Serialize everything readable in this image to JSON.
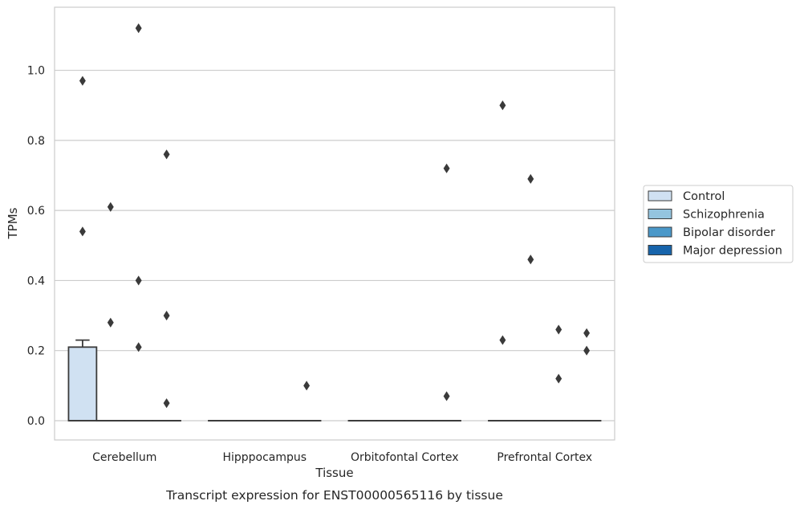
{
  "chart_data": {
    "type": "box",
    "caption": "Transcript expression for ENST00000565116 by tissue",
    "xlabel": "Tissue",
    "ylabel": "TPMs",
    "ylim": [
      -0.055,
      1.18
    ],
    "yticks": [
      0.0,
      0.2,
      0.4,
      0.6,
      0.8,
      1.0
    ],
    "ytick_labels": [
      "0.0",
      "0.2",
      "0.4",
      "0.6",
      "0.8",
      "1.0"
    ],
    "grid": true,
    "legend_position": "right",
    "categories": [
      "Cerebellum",
      "Hipppocampus",
      "Orbitofontal Cortex",
      "Prefrontal Cortex"
    ],
    "series": [
      {
        "name": "Control",
        "color": "#d0e1f2",
        "boxes": [
          {
            "q1": 0.0,
            "median": 0.0,
            "q3": 0.21,
            "whisker_low": 0.0,
            "whisker_high": 0.23,
            "outliers": [
              0.97,
              0.54
            ]
          },
          {
            "q1": 0.0,
            "median": 0.0,
            "q3": 0.0,
            "whisker_low": 0.0,
            "whisker_high": 0.0,
            "outliers": []
          },
          {
            "q1": 0.0,
            "median": 0.0,
            "q3": 0.0,
            "whisker_low": 0.0,
            "whisker_high": 0.0,
            "outliers": []
          },
          {
            "q1": 0.0,
            "median": 0.0,
            "q3": 0.0,
            "whisker_low": 0.0,
            "whisker_high": 0.0,
            "outliers": [
              0.9,
              0.23
            ]
          }
        ]
      },
      {
        "name": "Schizophrenia",
        "color": "#94c4df",
        "boxes": [
          {
            "q1": 0.0,
            "median": 0.0,
            "q3": 0.0,
            "whisker_low": 0.0,
            "whisker_high": 0.0,
            "outliers": [
              0.61,
              0.28
            ]
          },
          {
            "q1": 0.0,
            "median": 0.0,
            "q3": 0.0,
            "whisker_low": 0.0,
            "whisker_high": 0.0,
            "outliers": []
          },
          {
            "q1": 0.0,
            "median": 0.0,
            "q3": 0.0,
            "whisker_low": 0.0,
            "whisker_high": 0.0,
            "outliers": []
          },
          {
            "q1": 0.0,
            "median": 0.0,
            "q3": 0.0,
            "whisker_low": 0.0,
            "whisker_high": 0.0,
            "outliers": [
              0.69,
              0.46
            ]
          }
        ]
      },
      {
        "name": "Bipolar disorder",
        "color": "#4a98c9",
        "boxes": [
          {
            "q1": 0.0,
            "median": 0.0,
            "q3": 0.0,
            "whisker_low": 0.0,
            "whisker_high": 0.0,
            "outliers": [
              1.12,
              0.4,
              0.21
            ]
          },
          {
            "q1": 0.0,
            "median": 0.0,
            "q3": 0.0,
            "whisker_low": 0.0,
            "whisker_high": 0.0,
            "outliers": []
          },
          {
            "q1": 0.0,
            "median": 0.0,
            "q3": 0.0,
            "whisker_low": 0.0,
            "whisker_high": 0.0,
            "outliers": []
          },
          {
            "q1": 0.0,
            "median": 0.0,
            "q3": 0.0,
            "whisker_low": 0.0,
            "whisker_high": 0.0,
            "outliers": [
              0.26,
              0.12
            ]
          }
        ]
      },
      {
        "name": "Major depression",
        "color": "#1764ab",
        "boxes": [
          {
            "q1": 0.0,
            "median": 0.0,
            "q3": 0.0,
            "whisker_low": 0.0,
            "whisker_high": 0.0,
            "outliers": [
              0.76,
              0.3,
              0.05
            ]
          },
          {
            "q1": 0.0,
            "median": 0.0,
            "q3": 0.0,
            "whisker_low": 0.0,
            "whisker_high": 0.0,
            "outliers": [
              0.1
            ]
          },
          {
            "q1": 0.0,
            "median": 0.0,
            "q3": 0.0,
            "whisker_low": 0.0,
            "whisker_high": 0.0,
            "outliers": [
              0.72,
              0.07
            ]
          },
          {
            "q1": 0.0,
            "median": 0.0,
            "q3": 0.0,
            "whisker_low": 0.0,
            "whisker_high": 0.0,
            "outliers": [
              0.25,
              0.2
            ]
          }
        ]
      }
    ]
  }
}
